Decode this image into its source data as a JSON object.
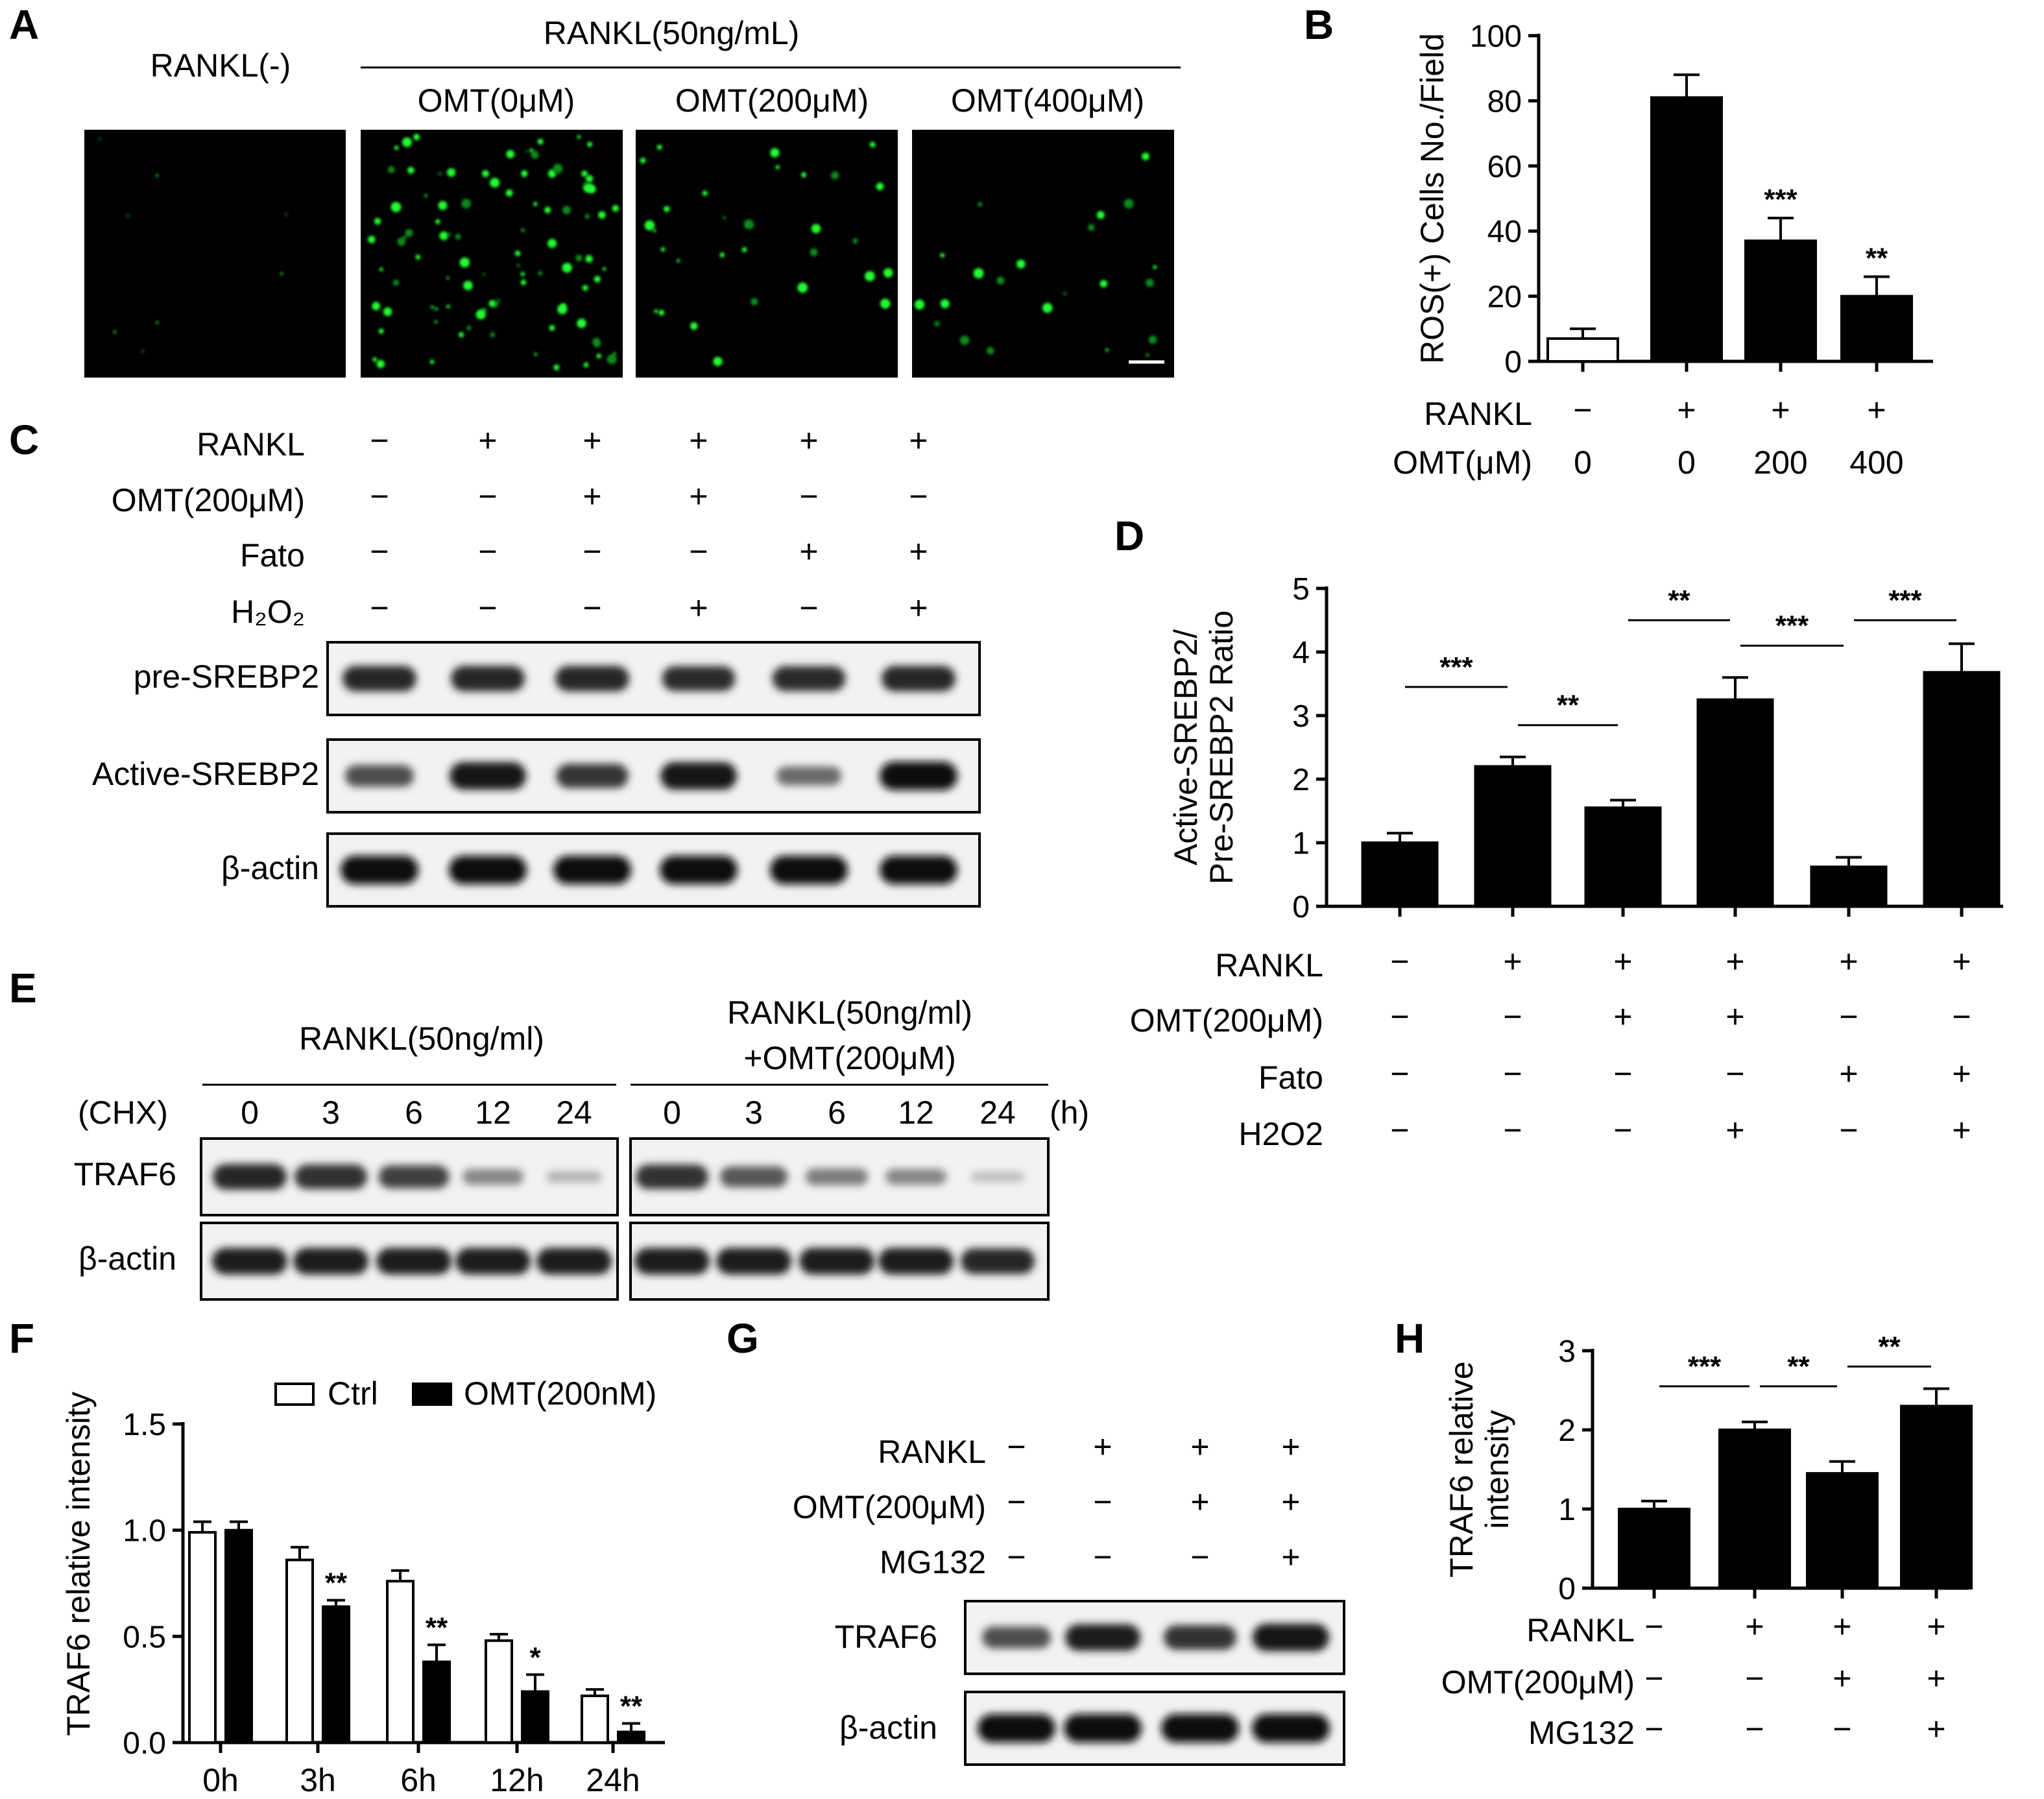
{
  "panels": {
    "A": {
      "label": "A",
      "neg_label": "RANKL(-)",
      "rankl_header": "RANKL(50ng/mL)",
      "groups": [
        "OMT(0μM)",
        "OMT(200μM)",
        "OMT(400μM)"
      ]
    },
    "C": {
      "label": "C",
      "conditions": [
        {
          "name": "RANKL",
          "marks": [
            "−",
            "+",
            "+",
            "+",
            "+",
            "+"
          ]
        },
        {
          "name": "OMT(200μM)",
          "marks": [
            "−",
            "−",
            "+",
            "+",
            "−",
            "−"
          ]
        },
        {
          "name": "Fato",
          "marks": [
            "−",
            "−",
            "−",
            "−",
            "+",
            "+"
          ]
        },
        {
          "name": "H₂O₂",
          "marks": [
            "−",
            "−",
            "−",
            "+",
            "−",
            "+"
          ]
        }
      ],
      "blots": [
        "pre-SREBP2",
        "Active-SREBP2",
        "β-actin"
      ]
    },
    "E": {
      "label": "E",
      "group1": "RANKL(50ng/ml)",
      "group2_line1": "RANKL(50ng/ml)",
      "group2_line2": "+OMT(200μM)",
      "chx_label": "(CHX)",
      "timepoints": [
        "0",
        "3",
        "6",
        "12",
        "24"
      ],
      "unit": "(h)",
      "blots": [
        "TRAF6",
        "β-actin"
      ]
    },
    "G": {
      "label": "G",
      "conditions": [
        {
          "name": "RANKL",
          "marks": [
            "−",
            "+",
            "+",
            "+"
          ]
        },
        {
          "name": "OMT(200μM)",
          "marks": [
            "−",
            "−",
            "+",
            "+"
          ]
        },
        {
          "name": "MG132",
          "marks": [
            "−",
            "−",
            "−",
            "+"
          ]
        }
      ],
      "blots": [
        "TRAF6",
        "β-actin"
      ]
    },
    "B": {
      "label": "B"
    },
    "D": {
      "label": "D"
    },
    "F": {
      "label": "F"
    },
    "H": {
      "label": "H"
    }
  },
  "chart_data": [
    {
      "panel": "B",
      "type": "bar",
      "ylabel": "ROS(+) Cells No./Field",
      "ylim": [
        0,
        100
      ],
      "yticks": [
        0,
        20,
        40,
        60,
        80,
        100
      ],
      "values": [
        7,
        81,
        37,
        20
      ],
      "errors": [
        3,
        7,
        7,
        6
      ],
      "bar_fill": [
        "#ffffff",
        "#000000",
        "#000000",
        "#000000"
      ],
      "significance": [
        "",
        "",
        "***",
        "**"
      ],
      "conditions": [
        {
          "name": "RANKL",
          "marks": [
            "−",
            "+",
            "+",
            "+"
          ]
        },
        {
          "name": "OMT(μM)",
          "marks": [
            "0",
            "0",
            "200",
            "400"
          ]
        }
      ]
    },
    {
      "panel": "D",
      "type": "bar",
      "ylabel_line1": "Active-SREBP2/",
      "ylabel_line2": "Pre-SREBP2 Ratio",
      "ylim": [
        0,
        5
      ],
      "yticks": [
        0,
        1,
        2,
        3,
        4,
        5
      ],
      "values": [
        1.0,
        2.2,
        1.55,
        3.25,
        0.62,
        3.68
      ],
      "errors": [
        0.15,
        0.15,
        0.12,
        0.35,
        0.15,
        0.45
      ],
      "comparisons": [
        {
          "from": 0,
          "to": 1,
          "y": 3.45,
          "label": "***"
        },
        {
          "from": 1,
          "to": 2,
          "y": 2.85,
          "label": "**"
        },
        {
          "from": 2,
          "to": 3,
          "y": 4.5,
          "label": "**"
        },
        {
          "from": 3,
          "to": 4,
          "y": 4.1,
          "label": "***"
        },
        {
          "from": 4,
          "to": 5,
          "y": 4.5,
          "label": "***"
        }
      ],
      "conditions": [
        {
          "name": "RANKL",
          "marks": [
            "−",
            "+",
            "+",
            "+",
            "+",
            "+"
          ]
        },
        {
          "name": "OMT(200μM)",
          "marks": [
            "−",
            "−",
            "+",
            "+",
            "−",
            "−"
          ]
        },
        {
          "name": "Fato",
          "marks": [
            "−",
            "−",
            "−",
            "−",
            "+",
            "+"
          ]
        },
        {
          "name": "H2O2",
          "marks": [
            "−",
            "−",
            "−",
            "+",
            "−",
            "+"
          ]
        }
      ]
    },
    {
      "panel": "F",
      "type": "bar",
      "ylabel": "TRAF6 relative intensity",
      "ylim": [
        0,
        1.5
      ],
      "yticks": [
        "0.0",
        "0.5",
        "1.0",
        "1.5"
      ],
      "categories": [
        "0h",
        "3h",
        "6h",
        "12h",
        "24h"
      ],
      "legend": "top",
      "series": [
        {
          "name": "Ctrl",
          "fill": "#ffffff",
          "values": [
            0.99,
            0.86,
            0.76,
            0.48,
            0.22
          ],
          "errors": [
            0.05,
            0.06,
            0.05,
            0.03,
            0.03
          ],
          "significance": [
            "",
            "",
            "",
            "",
            ""
          ]
        },
        {
          "name": "OMT(200nM)",
          "fill": "#000000",
          "values": [
            1.0,
            0.64,
            0.38,
            0.24,
            0.05
          ],
          "errors": [
            0.04,
            0.03,
            0.08,
            0.08,
            0.04
          ],
          "significance": [
            "",
            "**",
            "**",
            "*",
            "**"
          ]
        }
      ]
    },
    {
      "panel": "H",
      "type": "bar",
      "ylabel_line1": "TRAF6 relative",
      "ylabel_line2": "intensity",
      "ylim": [
        0,
        3
      ],
      "yticks": [
        0,
        1,
        2,
        3
      ],
      "values": [
        1.0,
        2.0,
        1.45,
        2.3
      ],
      "errors": [
        0.1,
        0.1,
        0.15,
        0.22
      ],
      "comparisons": [
        {
          "from": 0,
          "to": 1,
          "y": 2.55,
          "label": "***"
        },
        {
          "from": 1,
          "to": 2,
          "y": 2.55,
          "label": "**"
        },
        {
          "from": 2,
          "to": 3,
          "y": 2.8,
          "label": "**"
        }
      ],
      "conditions": [
        {
          "name": "RANKL",
          "marks": [
            "−",
            "+",
            "+",
            "+"
          ]
        },
        {
          "name": "OMT(200μM)",
          "marks": [
            "−",
            "−",
            "+",
            "+"
          ]
        },
        {
          "name": "MG132",
          "marks": [
            "−",
            "−",
            "−",
            "+"
          ]
        }
      ]
    }
  ]
}
